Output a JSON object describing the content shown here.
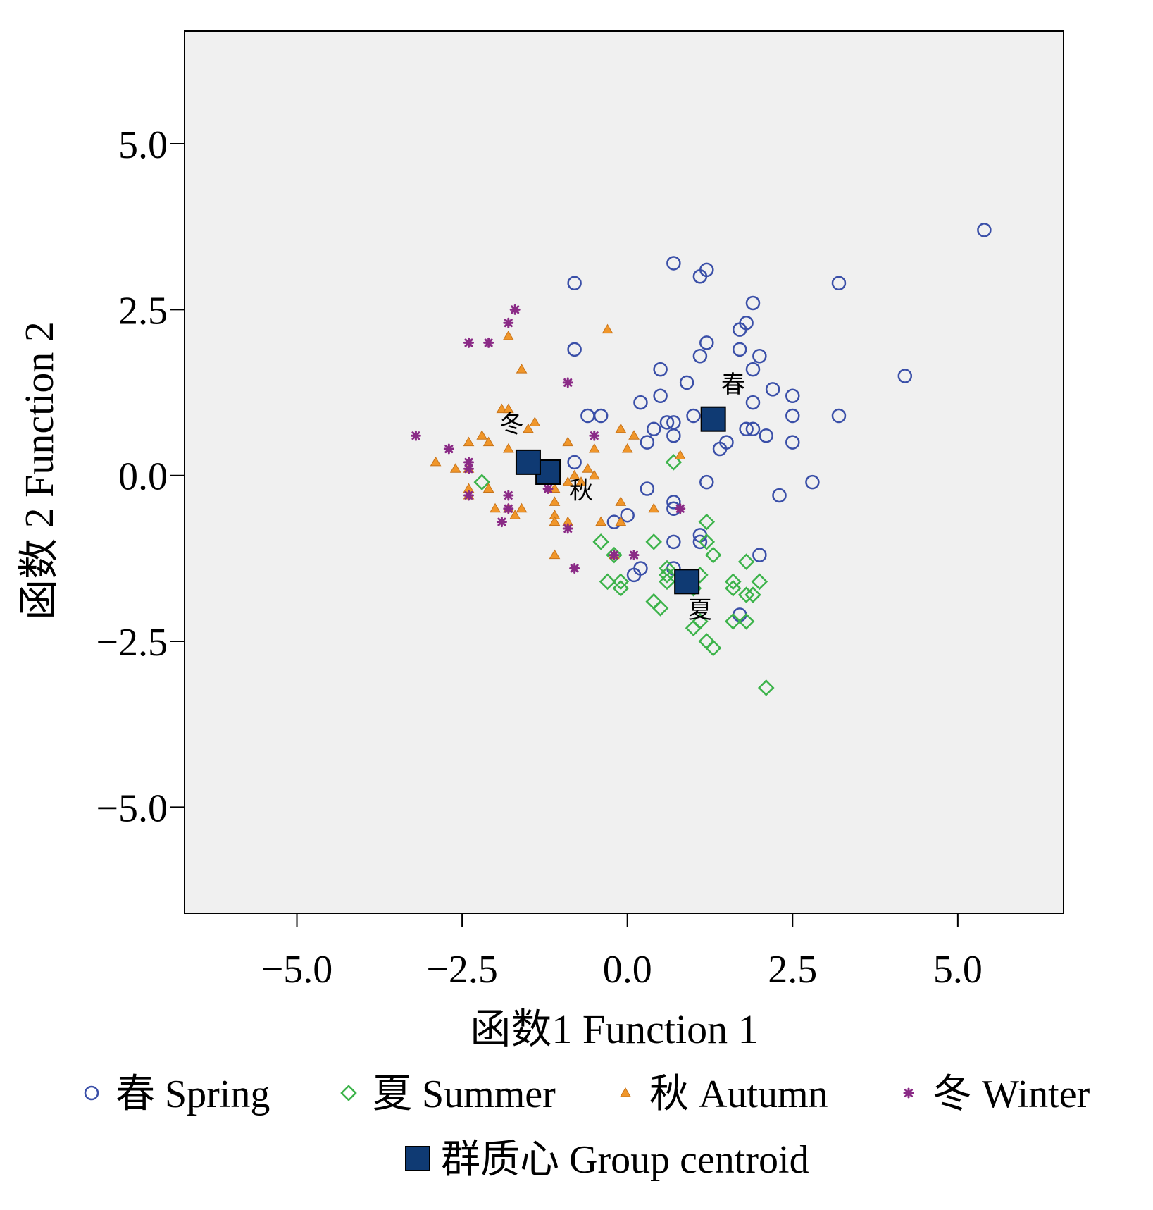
{
  "chart_data": {
    "type": "scatter",
    "xlabel": "函数1  Function 1",
    "ylabel": "函数 2  Function 2",
    "xlim": [
      -6.7,
      6.6
    ],
    "ylim": [
      -6.6,
      6.7
    ],
    "xticks": [
      -5.0,
      -2.5,
      0.0,
      2.5,
      5.0
    ],
    "yticks": [
      -5.0,
      -2.5,
      0.0,
      2.5,
      5.0
    ],
    "xtick_labels": [
      "−5.0",
      "−2.5",
      "0.0",
      "2.5",
      "5.0"
    ],
    "ytick_labels": [
      "−5.0",
      "−2.5",
      "0.0",
      "2.5",
      "5.0"
    ],
    "grid": false,
    "legend_position": "bottom",
    "series": [
      {
        "name": "春 Spring",
        "marker": "circle",
        "color": "#3a4fa8",
        "points": [
          [
            5.4,
            3.7
          ],
          [
            4.2,
            1.5
          ],
          [
            3.2,
            2.9
          ],
          [
            3.2,
            0.9
          ],
          [
            2.8,
            -0.1
          ],
          [
            2.3,
            -0.3
          ],
          [
            2.5,
            0.5
          ],
          [
            2.5,
            0.9
          ],
          [
            2.5,
            1.2
          ],
          [
            2.2,
            1.3
          ],
          [
            2.0,
            1.8
          ],
          [
            1.9,
            2.6
          ],
          [
            1.8,
            2.3
          ],
          [
            1.7,
            2.2
          ],
          [
            1.7,
            1.9
          ],
          [
            1.9,
            1.6
          ],
          [
            1.9,
            1.1
          ],
          [
            2.1,
            0.6
          ],
          [
            1.8,
            0.7
          ],
          [
            1.9,
            0.7
          ],
          [
            1.2,
            3.1
          ],
          [
            1.1,
            3.0
          ],
          [
            0.7,
            3.2
          ],
          [
            1.2,
            2.0
          ],
          [
            1.1,
            1.8
          ],
          [
            0.5,
            1.6
          ],
          [
            0.5,
            1.2
          ],
          [
            0.9,
            1.4
          ],
          [
            1.0,
            0.9
          ],
          [
            0.6,
            0.8
          ],
          [
            0.7,
            0.8
          ],
          [
            0.7,
            0.6
          ],
          [
            0.4,
            0.7
          ],
          [
            0.3,
            0.5
          ],
          [
            0.2,
            1.1
          ],
          [
            1.5,
            0.5
          ],
          [
            1.4,
            0.4
          ],
          [
            1.2,
            -0.1
          ],
          [
            -0.8,
            2.9
          ],
          [
            -0.8,
            1.9
          ],
          [
            -0.6,
            0.9
          ],
          [
            -0.4,
            0.9
          ],
          [
            -0.8,
            0.2
          ],
          [
            0.3,
            -0.2
          ],
          [
            0.7,
            -0.4
          ],
          [
            0.7,
            -0.5
          ],
          [
            0.0,
            -0.6
          ],
          [
            -0.2,
            -0.7
          ],
          [
            0.7,
            -1.0
          ],
          [
            1.1,
            -0.9
          ],
          [
            1.1,
            -1.0
          ],
          [
            0.7,
            -1.4
          ],
          [
            0.2,
            -1.4
          ],
          [
            0.1,
            -1.5
          ],
          [
            2.0,
            -1.2
          ],
          [
            1.7,
            -2.1
          ]
        ]
      },
      {
        "name": "夏 Summer",
        "marker": "diamond",
        "color": "#3cb34a",
        "points": [
          [
            0.7,
            0.2
          ],
          [
            -2.2,
            -0.1
          ],
          [
            1.2,
            -0.7
          ],
          [
            1.2,
            -1.0
          ],
          [
            1.3,
            -1.2
          ],
          [
            1.1,
            -1.5
          ],
          [
            0.6,
            -1.4
          ],
          [
            0.4,
            -1.0
          ],
          [
            -0.4,
            -1.0
          ],
          [
            -0.2,
            -1.2
          ],
          [
            -0.3,
            -1.6
          ],
          [
            -0.1,
            -1.6
          ],
          [
            -0.1,
            -1.7
          ],
          [
            0.6,
            -1.5
          ],
          [
            0.6,
            -1.6
          ],
          [
            1.0,
            -1.7
          ],
          [
            0.4,
            -1.9
          ],
          [
            0.5,
            -2.0
          ],
          [
            1.6,
            -1.6
          ],
          [
            1.6,
            -1.7
          ],
          [
            1.8,
            -1.3
          ],
          [
            2.0,
            -1.6
          ],
          [
            1.8,
            -1.8
          ],
          [
            1.9,
            -1.8
          ],
          [
            1.1,
            -2.2
          ],
          [
            1.0,
            -2.3
          ],
          [
            1.6,
            -2.2
          ],
          [
            1.8,
            -2.2
          ],
          [
            1.2,
            -2.5
          ],
          [
            1.3,
            -2.6
          ],
          [
            2.1,
            -3.2
          ]
        ]
      },
      {
        "name": "秋 Autumn",
        "marker": "triangle",
        "color": "#f0962a",
        "points": [
          [
            -0.3,
            2.2
          ],
          [
            -1.8,
            2.1
          ],
          [
            -1.6,
            1.6
          ],
          [
            -1.9,
            1.0
          ],
          [
            -1.8,
            1.0
          ],
          [
            -1.5,
            0.7
          ],
          [
            -1.4,
            0.8
          ],
          [
            -0.9,
            0.5
          ],
          [
            -0.5,
            0.4
          ],
          [
            -0.1,
            0.7
          ],
          [
            0.0,
            0.4
          ],
          [
            0.1,
            0.6
          ],
          [
            0.8,
            0.3
          ],
          [
            -2.2,
            0.6
          ],
          [
            -2.1,
            0.5
          ],
          [
            -2.4,
            0.5
          ],
          [
            -1.8,
            0.4
          ],
          [
            -2.9,
            0.2
          ],
          [
            -2.6,
            0.1
          ],
          [
            -2.4,
            0.1
          ],
          [
            -0.6,
            0.1
          ],
          [
            -0.8,
            0.0
          ],
          [
            -0.5,
            0.0
          ],
          [
            -0.7,
            -0.1
          ],
          [
            -0.9,
            -0.1
          ],
          [
            -1.1,
            -0.2
          ],
          [
            -2.4,
            -0.2
          ],
          [
            -2.4,
            -0.3
          ],
          [
            -2.1,
            -0.2
          ],
          [
            -2.0,
            -0.5
          ],
          [
            -1.8,
            -0.5
          ],
          [
            -1.6,
            -0.5
          ],
          [
            -1.7,
            -0.6
          ],
          [
            -1.1,
            -0.4
          ],
          [
            -1.1,
            -0.6
          ],
          [
            -0.9,
            -0.7
          ],
          [
            -1.1,
            -0.7
          ],
          [
            -0.1,
            -0.4
          ],
          [
            0.4,
            -0.5
          ],
          [
            -0.4,
            -0.7
          ],
          [
            -0.1,
            -0.7
          ],
          [
            -0.2,
            -1.2
          ],
          [
            -1.1,
            -1.2
          ]
        ]
      },
      {
        "name": "冬 Winter",
        "marker": "asterisk",
        "color": "#8a2a86",
        "points": [
          [
            -1.7,
            2.5
          ],
          [
            -1.8,
            2.3
          ],
          [
            -2.1,
            2.0
          ],
          [
            -2.4,
            2.0
          ],
          [
            -0.9,
            1.4
          ],
          [
            -0.5,
            0.6
          ],
          [
            -3.2,
            0.6
          ],
          [
            -2.7,
            0.4
          ],
          [
            -2.4,
            0.2
          ],
          [
            -2.4,
            0.1
          ],
          [
            -2.4,
            -0.3
          ],
          [
            -1.8,
            -0.3
          ],
          [
            -1.8,
            -0.5
          ],
          [
            -1.9,
            -0.7
          ],
          [
            -1.2,
            -0.2
          ],
          [
            -0.9,
            -0.8
          ],
          [
            0.8,
            -0.5
          ],
          [
            -0.2,
            -1.2
          ],
          [
            0.1,
            -1.2
          ],
          [
            -0.8,
            -1.4
          ]
        ]
      },
      {
        "name": "群质心 Group centroid",
        "marker": "square",
        "color": "#0f3a73",
        "points": [
          [
            1.3,
            0.85
          ],
          [
            0.9,
            -1.6
          ],
          [
            -1.2,
            0.05
          ],
          [
            -1.5,
            0.2
          ]
        ]
      }
    ],
    "centroid_labels": [
      {
        "text": "春",
        "x": 1.6,
        "y": 1.4
      },
      {
        "text": "夏",
        "x": 1.1,
        "y": -2.0
      },
      {
        "text": "秋",
        "x": -0.7,
        "y": -0.2
      },
      {
        "text": "冬",
        "x": -1.75,
        "y": 0.8
      }
    ]
  }
}
